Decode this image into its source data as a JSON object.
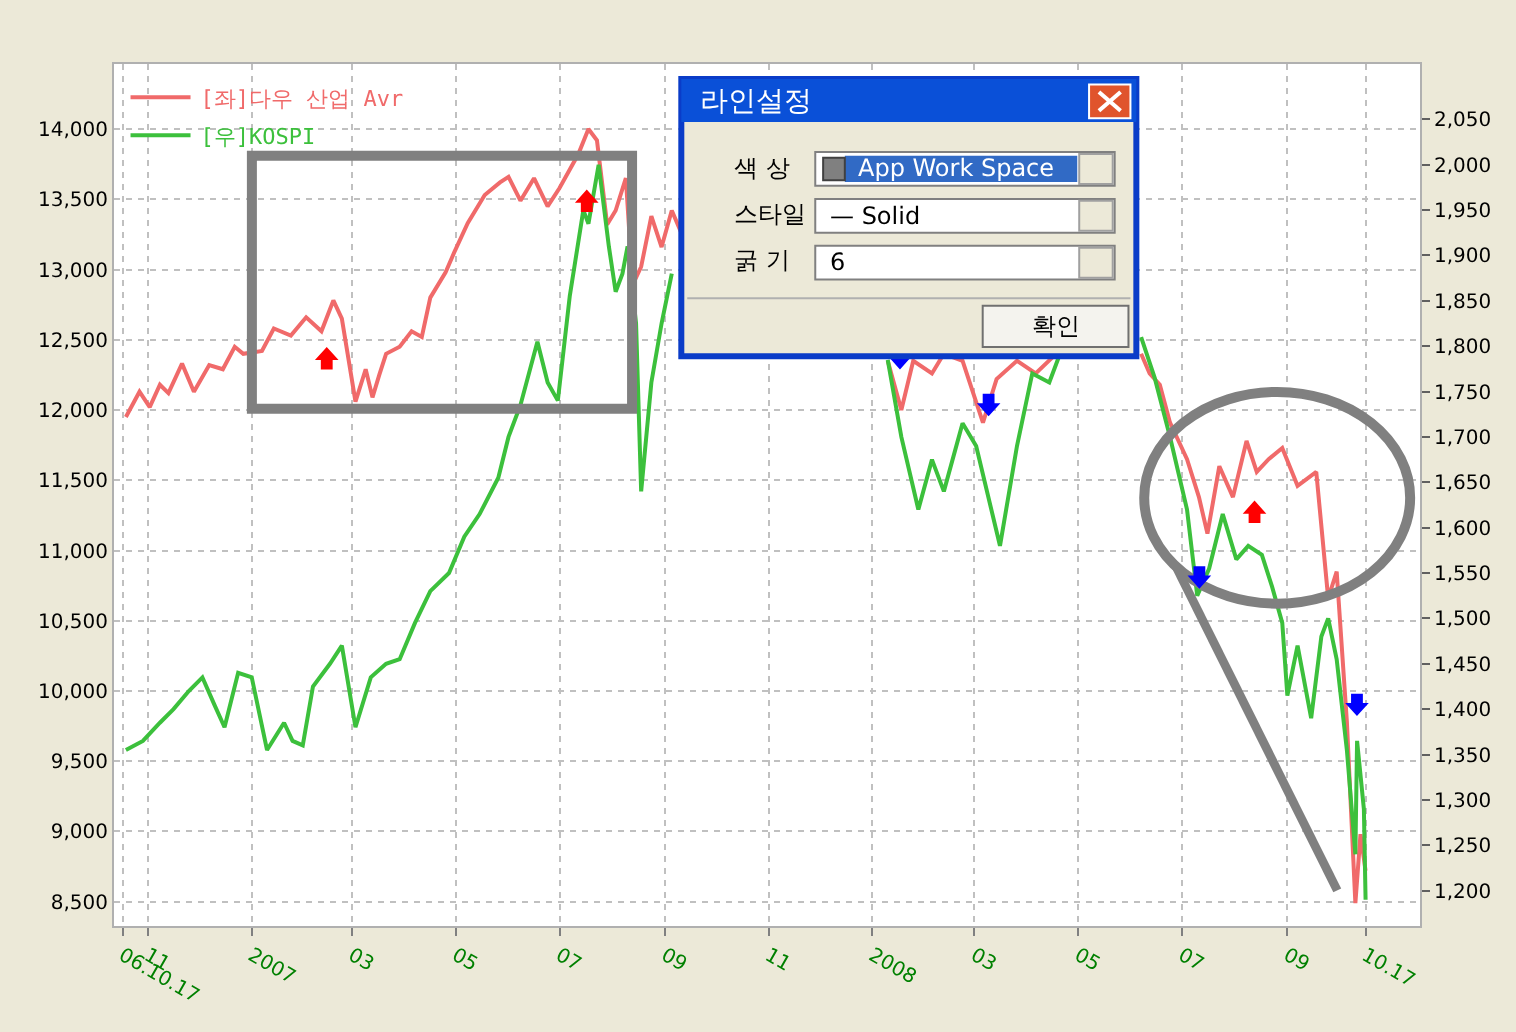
{
  "chart_data": {
    "type": "line",
    "x": [
      "2006-10-19",
      "2006-10-27",
      "2006-11-02",
      "2006-11-08",
      "2006-11-13",
      "2006-11-21",
      "2006-11-28",
      "2006-12-07",
      "2006-12-15",
      "2006-12-22",
      "2006-12-27",
      "2007-01-07",
      "2007-01-14",
      "2007-01-24",
      "2007-02-02",
      "2007-02-11",
      "2007-02-18",
      "2007-02-23",
      "2007-03-03",
      "2007-03-09",
      "2007-03-13",
      "2007-03-17",
      "2007-03-21",
      "2007-03-29",
      "2007-04-05",
      "2007-04-11",
      "2007-04-16",
      "2007-04-25",
      "2007-04-30",
      "2007-05-08",
      "2007-05-18",
      "2007-05-27",
      "2007-06-01",
      "2007-06-08",
      "2007-06-16",
      "2007-06-24",
      "2007-07-01",
      "2007-07-12",
      "2007-07-18",
      "2007-07-23",
      "2007-07-29",
      "2007-08-03",
      "2007-08-09",
      "2007-08-13",
      "2007-08-18",
      "2007-08-24",
      "2007-08-30",
      "2007-09-05",
      "2007-09-11",
      "2007-11-25",
      "2008-01-10",
      "2008-01-18",
      "2008-01-25",
      "2008-02-05",
      "2008-02-12",
      "2008-02-23",
      "2008-03-06",
      "2008-03-14",
      "2008-03-26",
      "2008-04-06",
      "2008-04-18",
      "2008-05-20",
      "2008-06-07",
      "2008-06-12",
      "2008-06-18",
      "2008-06-24",
      "2008-07-04",
      "2008-07-11",
      "2008-07-16",
      "2008-07-23",
      "2008-07-31",
      "2008-08-08",
      "2008-08-14",
      "2008-08-21",
      "2008-08-29",
      "2008-09-07",
      "2008-09-18",
      "2008-09-25",
      "2008-09-30",
      "2008-10-06",
      "2008-10-11",
      "2008-10-14",
      "2008-10-17"
    ],
    "series": [
      {
        "name": "[좌]다우 산업 Avr",
        "color": "#f06a6a",
        "values": [
          11950,
          12130,
          12020,
          12180,
          12120,
          12330,
          12130,
          12320,
          12290,
          12450,
          12400,
          12420,
          12580,
          12530,
          12660,
          12560,
          12780,
          12650,
          12060,
          12290,
          12090,
          12250,
          12400,
          12450,
          12560,
          12520,
          12800,
          12980,
          13120,
          13330,
          13530,
          13620,
          13660,
          13490,
          13650,
          13450,
          13580,
          13820,
          14000,
          13920,
          13320,
          13420,
          13650,
          12890,
          13020,
          13380,
          13160,
          13420,
          13250,
          null,
          12350,
          12000,
          12350,
          12260,
          12400,
          12350,
          11910,
          12220,
          12350,
          12260,
          12400,
          null,
          12400,
          12260,
          12180,
          11910,
          11650,
          11380,
          11120,
          11600,
          11380,
          11780,
          11560,
          11650,
          11730,
          11460,
          11560,
          10660,
          10850,
          9780,
          8490,
          8980,
          8720
        ]
      },
      {
        "name": "[우]KOSPI",
        "color": "#3cc03c",
        "axis": "y2",
        "x": [
          "2006-10-19",
          "2006-10-29",
          "2006-11-08",
          "2006-11-16",
          "2006-11-25",
          "2006-12-03",
          "2006-12-10",
          "2006-12-16",
          "2006-12-24",
          "2007-01-01",
          "2007-01-10",
          "2007-01-20",
          "2007-01-25",
          "2007-01-31",
          "2007-02-06",
          "2007-02-16",
          "2007-02-23",
          "2007-03-03",
          "2007-03-12",
          "2007-03-21",
          "2007-03-29",
          "2007-04-07",
          "2007-04-16",
          "2007-04-27",
          "2007-05-06",
          "2007-05-15",
          "2007-05-26",
          "2007-06-01",
          "2007-06-08",
          "2007-06-18",
          "2007-06-24",
          "2007-06-30",
          "2007-07-07",
          "2007-07-15",
          "2007-07-18",
          "2007-07-24",
          "2007-07-30",
          "2007-08-03",
          "2007-08-07",
          "2007-08-10",
          "2007-08-15",
          "2007-08-18",
          "2007-08-24",
          "2007-08-30",
          "2007-09-05",
          "2007-11-25",
          "2008-01-10",
          "2008-01-18",
          "2008-01-28",
          "2008-02-05",
          "2008-02-12",
          "2008-02-23",
          "2008-03-02",
          "2008-03-16",
          "2008-03-26",
          "2008-04-04",
          "2008-04-14",
          "2008-04-20",
          "2008-05-20",
          "2008-06-07",
          "2008-06-15",
          "2008-06-24",
          "2008-07-04",
          "2008-07-10",
          "2008-07-17",
          "2008-07-25",
          "2008-08-02",
          "2008-08-09",
          "2008-08-17",
          "2008-08-23",
          "2008-08-29",
          "2008-09-01",
          "2008-09-07",
          "2008-09-15",
          "2008-09-21",
          "2008-09-25",
          "2008-09-30",
          "2008-10-06",
          "2008-10-11",
          "2008-10-12",
          "2008-10-16",
          "2008-10-17"
        ],
        "values": [
          1355,
          1365,
          1385,
          1400,
          1420,
          1435,
          1405,
          1380,
          1440,
          1435,
          1355,
          1385,
          1365,
          1360,
          1425,
          1450,
          1470,
          1380,
          1435,
          1450,
          1455,
          1495,
          1530,
          1550,
          1590,
          1615,
          1655,
          1700,
          1735,
          1805,
          1760,
          1740,
          1855,
          1950,
          1935,
          2000,
          1910,
          1860,
          1880,
          1910,
          1825,
          1640,
          1760,
          1825,
          1880,
          null,
          1785,
          1700,
          1620,
          1675,
          1640,
          1715,
          1690,
          1580,
          1690,
          1770,
          1760,
          1790,
          null,
          1810,
          1765,
          1700,
          1620,
          1525,
          1555,
          1615,
          1565,
          1580,
          1570,
          1535,
          1495,
          1415,
          1470,
          1390,
          1480,
          1500,
          1455,
          1355,
          1240,
          1365,
          1290,
          1190
        ]
      }
    ],
    "xlim": [
      "2006-10-12",
      "2008-11-18"
    ],
    "xticks": [
      {
        "value": "2006-10-17",
        "label": "06.10.17"
      },
      {
        "value": "2006-11-01",
        "label": "11"
      },
      {
        "value": "2007-01-01",
        "label": "2007"
      },
      {
        "value": "2007-03-01",
        "label": "03"
      },
      {
        "value": "2007-05-01",
        "label": "05"
      },
      {
        "value": "2007-07-01",
        "label": "07"
      },
      {
        "value": "2007-09-01",
        "label": "09"
      },
      {
        "value": "2007-11-01",
        "label": "11"
      },
      {
        "value": "2008-01-01",
        "label": "2008"
      },
      {
        "value": "2008-03-01",
        "label": "03"
      },
      {
        "value": "2008-05-01",
        "label": "05"
      },
      {
        "value": "2008-07-01",
        "label": "07"
      },
      {
        "value": "2008-09-01",
        "label": "09"
      },
      {
        "value": "2008-10-17",
        "label": "10.17"
      }
    ],
    "ylim": [
      8327,
      14463
    ],
    "yticks": [
      {
        "value": 8500,
        "label": "8,500"
      },
      {
        "value": 9000,
        "label": "9,000"
      },
      {
        "value": 9500,
        "label": "9,500"
      },
      {
        "value": 10000,
        "label": "10,000"
      },
      {
        "value": 10500,
        "label": "10,500"
      },
      {
        "value": 11000,
        "label": "11,000"
      },
      {
        "value": 11500,
        "label": "11,500"
      },
      {
        "value": 12000,
        "label": "12,000"
      },
      {
        "value": 12500,
        "label": "12,500"
      },
      {
        "value": 13000,
        "label": "13,000"
      },
      {
        "value": 13500,
        "label": "13,500"
      },
      {
        "value": 14000,
        "label": "14,000"
      }
    ],
    "y2lim": [
      1161,
      2111
    ],
    "y2ticks": [
      {
        "value": 1200,
        "label": "1,200"
      },
      {
        "value": 1250,
        "label": "1,250"
      },
      {
        "value": 1300,
        "label": "1,300"
      },
      {
        "value": 1350,
        "label": "1,350"
      },
      {
        "value": 1400,
        "label": "1,400"
      },
      {
        "value": 1450,
        "label": "1,450"
      },
      {
        "value": 1500,
        "label": "1,500"
      },
      {
        "value": 1550,
        "label": "1,550"
      },
      {
        "value": 1600,
        "label": "1,600"
      },
      {
        "value": 1650,
        "label": "1,650"
      },
      {
        "value": 1700,
        "label": "1,700"
      },
      {
        "value": 1750,
        "label": "1,750"
      },
      {
        "value": 1800,
        "label": "1,800"
      },
      {
        "value": 1850,
        "label": "1,850"
      },
      {
        "value": 1900,
        "label": "1,900"
      },
      {
        "value": 1950,
        "label": "1,950"
      },
      {
        "value": 2000,
        "label": "2,000"
      },
      {
        "value": 2050,
        "label": "2,050"
      }
    ],
    "grid": true,
    "legend": "top left",
    "line_style": "solid",
    "annotations": [
      "라인설정",
      "색 상",
      "App Work Space",
      "스타일",
      "— Solid",
      "굵 기",
      "6",
      "확인"
    ]
  }
}
